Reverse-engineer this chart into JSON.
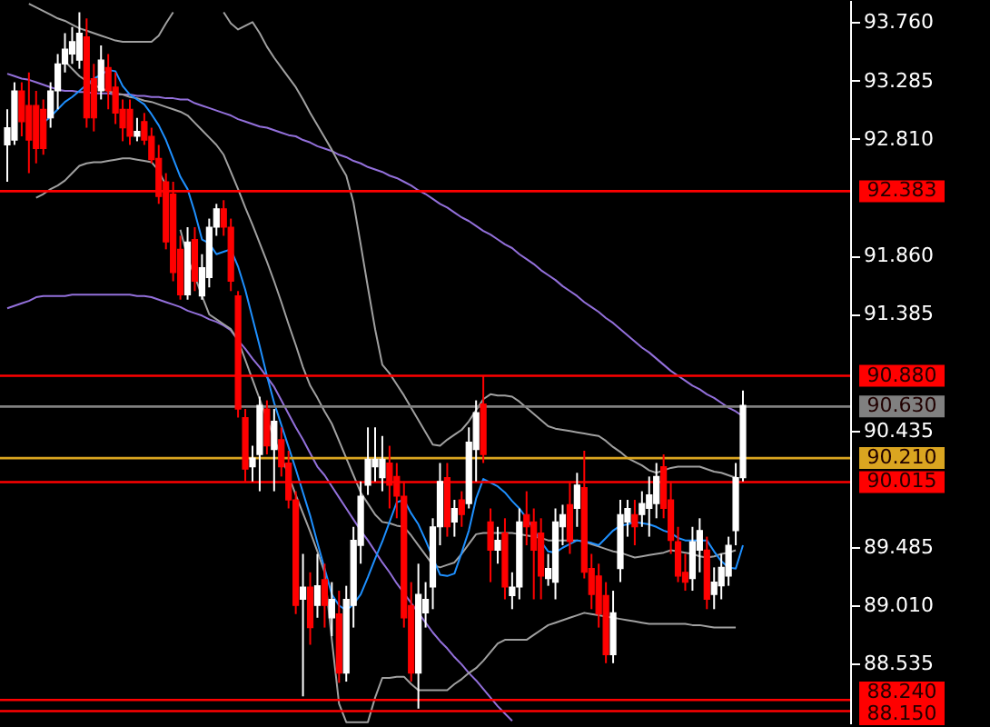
{
  "chart_data": {
    "type": "candlestick",
    "ylim": [
      88.05,
      93.94
    ],
    "categories": [
      null,
      null,
      null,
      null,
      null,
      null,
      null,
      null,
      null,
      null,
      null,
      null,
      null,
      null,
      null,
      null,
      null,
      null,
      null,
      null,
      null,
      null,
      null,
      null,
      null,
      null,
      null,
      null,
      null,
      null,
      null,
      null,
      null,
      null,
      null,
      null,
      null,
      null,
      null,
      null,
      null,
      null,
      null,
      null,
      null,
      null,
      null,
      null,
      null,
      null,
      null,
      null,
      null,
      null,
      null,
      null,
      null,
      null,
      null,
      null,
      null,
      null,
      null,
      null,
      null,
      null,
      null,
      null,
      null,
      null,
      null,
      null,
      null,
      null,
      null,
      null,
      null,
      null,
      null,
      null,
      null,
      null,
      null,
      null,
      null,
      null,
      null,
      null,
      null,
      null,
      null,
      null,
      null,
      null,
      null,
      null,
      null,
      null,
      null,
      null,
      null,
      null,
      null
    ],
    "yticks": [
      {
        "value": 93.76,
        "label": "93.760"
      },
      {
        "value": 93.285,
        "label": "93.285"
      },
      {
        "value": 92.81,
        "label": "92.810"
      },
      {
        "value": 91.86,
        "label": "91.860"
      },
      {
        "value": 91.385,
        "label": "91.385"
      },
      {
        "value": 90.435,
        "label": "90.435"
      },
      {
        "value": 89.485,
        "label": "89.485"
      },
      {
        "value": 89.01,
        "label": "89.010"
      },
      {
        "value": 88.535,
        "label": "88.535"
      }
    ],
    "ref_lines": [
      {
        "axis": "y",
        "value": 92.383,
        "label": "92.383",
        "color": "#ff0000"
      },
      {
        "axis": "y",
        "value": 90.88,
        "label": "90.880",
        "color": "#ff0000"
      },
      {
        "axis": "y",
        "value": 90.63,
        "label": "90.630",
        "color": "#808080"
      },
      {
        "axis": "y",
        "value": 90.21,
        "label": "90.210",
        "color": "#daa520"
      },
      {
        "axis": "y",
        "value": 90.015,
        "label": "90.015",
        "color": "#ff0000"
      },
      {
        "axis": "y",
        "value": 88.24,
        "label": "88.240",
        "color": "#ff0000"
      },
      {
        "axis": "y",
        "value": 88.15,
        "label": "88.150",
        "color": "#ff0000"
      }
    ],
    "ohlc": [
      [
        92.76,
        93.05,
        92.46,
        92.9
      ],
      [
        92.8,
        93.27,
        92.76,
        93.2
      ],
      [
        93.2,
        93.27,
        92.83,
        92.95
      ],
      [
        93.08,
        93.35,
        92.53,
        92.8
      ],
      [
        93.08,
        93.2,
        92.61,
        92.73
      ],
      [
        93.05,
        93.13,
        92.68,
        92.73
      ],
      [
        92.98,
        93.27,
        92.9,
        93.2
      ],
      [
        93.2,
        93.5,
        93.05,
        93.42
      ],
      [
        93.42,
        93.67,
        93.35,
        93.54
      ],
      [
        93.5,
        93.72,
        93.42,
        93.6
      ],
      [
        93.45,
        93.84,
        93.38,
        93.67
      ],
      [
        93.64,
        93.79,
        92.9,
        92.98
      ],
      [
        93.3,
        93.42,
        92.87,
        92.98
      ],
      [
        93.2,
        93.57,
        93.13,
        93.45
      ],
      [
        93.39,
        93.5,
        93.05,
        93.2
      ],
      [
        93.23,
        93.35,
        92.93,
        93.02
      ],
      [
        93.05,
        93.13,
        92.79,
        92.9
      ],
      [
        93.05,
        93.13,
        92.76,
        92.83
      ],
      [
        92.83,
        92.98,
        92.79,
        92.87
      ],
      [
        92.95,
        93.02,
        92.76,
        92.8
      ],
      [
        92.83,
        92.9,
        92.61,
        92.64
      ],
      [
        92.65,
        92.76,
        92.28,
        92.34
      ],
      [
        92.46,
        92.53,
        91.91,
        91.97
      ],
      [
        92.36,
        92.46,
        91.65,
        91.72
      ],
      [
        91.91,
        92.02,
        91.5,
        91.54
      ],
      [
        91.54,
        92.09,
        91.5,
        91.97
      ],
      [
        91.99,
        92.09,
        91.57,
        91.65
      ],
      [
        91.53,
        91.87,
        91.5,
        91.76
      ],
      [
        91.68,
        92.16,
        91.6,
        92.09
      ],
      [
        92.09,
        92.28,
        92.02,
        92.24
      ],
      [
        92.24,
        92.31,
        92.02,
        92.09
      ],
      [
        92.09,
        92.16,
        91.57,
        91.65
      ],
      [
        91.53,
        91.57,
        90.54,
        90.61
      ],
      [
        90.54,
        90.61,
        90.02,
        90.12
      ],
      [
        90.14,
        90.31,
        90.02,
        90.21
      ],
      [
        90.24,
        90.71,
        89.94,
        90.64
      ],
      [
        90.61,
        90.68,
        90.24,
        90.31
      ],
      [
        90.28,
        90.61,
        89.94,
        90.51
      ],
      [
        90.36,
        90.46,
        90.06,
        90.14
      ],
      [
        90.17,
        90.27,
        89.8,
        89.87
      ],
      [
        89.87,
        89.94,
        88.94,
        89.01
      ],
      [
        89.06,
        89.43,
        88.27,
        89.16
      ],
      [
        89.16,
        89.28,
        88.69,
        88.83
      ],
      [
        89.01,
        89.43,
        88.91,
        89.17
      ],
      [
        89.22,
        89.35,
        88.83,
        89.01
      ],
      [
        88.91,
        89.2,
        88.76,
        89.06
      ],
      [
        88.94,
        89.13,
        88.38,
        88.46
      ],
      [
        88.46,
        89.17,
        88.39,
        89.06
      ],
      [
        89.01,
        89.65,
        88.83,
        89.54
      ],
      [
        89.5,
        90.02,
        89.35,
        89.9
      ],
      [
        89.99,
        90.46,
        89.91,
        90.2
      ],
      [
        90.14,
        90.46,
        90.02,
        90.2
      ],
      [
        90.05,
        90.39,
        89.94,
        90.2
      ],
      [
        90.17,
        90.31,
        89.8,
        89.99
      ],
      [
        90.06,
        90.17,
        89.72,
        89.9
      ],
      [
        89.9,
        90.02,
        88.83,
        88.91
      ],
      [
        89.01,
        89.2,
        88.39,
        88.46
      ],
      [
        88.46,
        89.35,
        88.17,
        89.1
      ],
      [
        88.95,
        89.2,
        88.83,
        89.06
      ],
      [
        89.16,
        89.72,
        88.98,
        89.65
      ],
      [
        89.65,
        90.17,
        89.5,
        90.02
      ],
      [
        90.05,
        90.17,
        89.57,
        89.65
      ],
      [
        89.69,
        89.87,
        89.57,
        89.8
      ],
      [
        89.87,
        89.94,
        89.65,
        89.75
      ],
      [
        89.84,
        90.46,
        89.8,
        90.34
      ],
      [
        90.28,
        90.68,
        90.02,
        90.58
      ],
      [
        90.65,
        90.88,
        90.17,
        90.24
      ],
      [
        89.69,
        89.8,
        89.2,
        89.46
      ],
      [
        89.46,
        89.65,
        89.35,
        89.54
      ],
      [
        89.6,
        89.72,
        89.06,
        89.16
      ],
      [
        89.09,
        89.28,
        88.98,
        89.16
      ],
      [
        89.16,
        89.8,
        89.06,
        89.69
      ],
      [
        89.75,
        89.94,
        89.5,
        89.65
      ],
      [
        89.69,
        89.8,
        89.06,
        89.46
      ],
      [
        89.6,
        89.72,
        89.06,
        89.25
      ],
      [
        89.23,
        89.43,
        89.17,
        89.31
      ],
      [
        89.2,
        89.8,
        89.06,
        89.69
      ],
      [
        89.65,
        89.83,
        89.5,
        89.75
      ],
      [
        89.83,
        90.02,
        89.43,
        89.53
      ],
      [
        89.8,
        90.09,
        89.65,
        89.99
      ],
      [
        89.97,
        90.27,
        89.23,
        89.28
      ],
      [
        89.31,
        89.43,
        88.98,
        89.1
      ],
      [
        89.25,
        89.35,
        88.83,
        88.94
      ],
      [
        89.09,
        89.2,
        88.54,
        88.61
      ],
      [
        88.61,
        89.13,
        88.54,
        88.95
      ],
      [
        89.31,
        89.87,
        89.2,
        89.75
      ],
      [
        89.69,
        89.87,
        89.57,
        89.8
      ],
      [
        89.75,
        89.87,
        89.5,
        89.65
      ],
      [
        89.75,
        89.94,
        89.65,
        89.84
      ],
      [
        89.8,
        90.06,
        89.57,
        89.91
      ],
      [
        89.84,
        90.17,
        89.72,
        90.06
      ],
      [
        90.14,
        90.24,
        89.72,
        89.8
      ],
      [
        89.87,
        90.02,
        89.43,
        89.54
      ],
      [
        89.53,
        89.65,
        89.2,
        89.25
      ],
      [
        89.28,
        89.43,
        89.13,
        89.2
      ],
      [
        89.23,
        89.65,
        89.13,
        89.53
      ],
      [
        89.46,
        89.72,
        89.28,
        89.62
      ],
      [
        89.46,
        89.57,
        88.98,
        89.06
      ],
      [
        89.1,
        89.32,
        88.98,
        89.2
      ],
      [
        89.17,
        89.43,
        89.06,
        89.32
      ],
      [
        89.25,
        89.57,
        89.17,
        89.5
      ],
      [
        89.62,
        90.17,
        89.5,
        90.05
      ],
      [
        90.05,
        90.76,
        90.02,
        90.64
      ]
    ],
    "colors": [
      "#ffffff",
      "#ffffff",
      "#ff0000",
      "#ff0000",
      "#ff0000",
      "#ff0000",
      "#ffffff",
      "#ffffff",
      "#ffffff",
      "#ffffff",
      "#ffffff",
      "#ff0000",
      "#ff0000",
      "#ffffff",
      "#ff0000",
      "#ff0000",
      "#ff0000",
      "#ff0000",
      "#ffffff",
      "#ff0000",
      "#ff0000",
      "#ff0000",
      "#ff0000",
      "#ff0000",
      "#ff0000",
      "#ffffff",
      "#ff0000",
      "#ffffff",
      "#ffffff",
      "#ffffff",
      "#ff0000",
      "#ff0000",
      "#ff0000",
      "#ff0000",
      "#ffffff",
      "#ffffff",
      "#ff0000",
      "#ffffff",
      "#ff0000",
      "#ff0000",
      "#ff0000",
      "#ffffff",
      "#ff0000",
      "#ffffff",
      "#ff0000",
      "#ffffff",
      "#ff0000",
      "#ffffff",
      "#ffffff",
      "#ffffff",
      "#ffffff",
      "#ffffff",
      "#ffffff",
      "#ff0000",
      "#ff0000",
      "#ff0000",
      "#ff0000",
      "#ffffff",
      "#ffffff",
      "#ffffff",
      "#ffffff",
      "#ff0000",
      "#ffffff",
      "#ff0000",
      "#ffffff",
      "#ffffff",
      "#ff0000",
      "#ff0000",
      "#ffffff",
      "#ff0000",
      "#ffffff",
      "#ffffff",
      "#ff0000",
      "#ff0000",
      "#ff0000",
      "#ffffff",
      "#ffffff",
      "#ffffff",
      "#ff0000",
      "#ffffff",
      "#ff0000",
      "#ff0000",
      "#ff0000",
      "#ff0000",
      "#ffffff",
      "#ffffff",
      "#ffffff",
      "#ff0000",
      "#ffffff",
      "#ffffff",
      "#ffffff",
      "#ff0000",
      "#ff0000",
      "#ff0000",
      "#ff0000",
      "#ffffff",
      "#ffffff",
      "#ff0000",
      "#ffffff",
      "#ffffff",
      "#ffffff",
      "#ffffff",
      "#ffffff"
    ],
    "series": [
      {
        "type": "line",
        "color": "#9370db",
        "values": [
          93.34,
          93.32,
          93.3,
          93.29,
          93.27,
          93.25,
          93.23,
          93.21,
          93.2,
          93.2,
          93.19,
          93.19,
          93.18,
          93.18,
          93.18,
          93.17,
          93.17,
          93.17,
          93.16,
          93.16,
          93.15,
          93.15,
          93.14,
          93.14,
          93.13,
          93.13,
          93.1,
          93.08,
          93.06,
          93.04,
          93.02,
          93.0,
          92.97,
          92.95,
          92.93,
          92.91,
          92.9,
          92.88,
          92.86,
          92.84,
          92.83,
          92.8,
          92.78,
          92.75,
          92.73,
          92.71,
          92.68,
          92.66,
          92.63,
          92.61,
          92.58,
          92.56,
          92.54,
          92.51,
          92.49,
          92.46,
          92.43,
          92.39,
          92.36,
          92.32,
          92.28,
          92.25,
          92.21,
          92.17,
          92.14,
          92.1,
          92.06,
          92.03,
          91.99,
          91.95,
          91.92,
          91.87,
          91.83,
          91.79,
          91.74,
          91.7,
          91.66,
          91.61,
          91.57,
          91.53,
          91.48,
          91.44,
          91.4,
          91.35,
          91.31,
          91.26,
          91.21,
          91.16,
          91.11,
          91.07,
          91.02,
          90.97,
          90.92,
          90.88,
          90.84,
          90.8,
          90.77,
          90.73,
          90.7,
          90.66,
          90.62,
          90.59,
          90.55
        ]
      },
      {
        "type": "line",
        "color": "#9370db",
        "values": [
          91.43,
          91.45,
          91.47,
          91.49,
          91.52,
          91.53,
          91.53,
          91.53,
          91.53,
          91.54,
          91.54,
          91.54,
          91.54,
          91.54,
          91.54,
          91.54,
          91.54,
          91.54,
          91.53,
          91.53,
          91.52,
          91.5,
          91.48,
          91.46,
          91.44,
          91.41,
          91.39,
          91.37,
          91.34,
          91.32,
          91.29,
          91.25,
          91.17,
          91.1,
          91.02,
          90.95,
          90.87,
          90.79,
          90.68,
          90.57,
          90.46,
          90.36,
          90.25,
          90.14,
          90.07,
          89.98,
          89.89,
          89.8,
          89.71,
          89.62,
          89.54,
          89.45,
          89.36,
          89.28,
          89.19,
          89.11,
          89.03,
          88.95,
          88.87,
          88.79,
          88.72,
          88.66,
          88.59,
          88.53,
          88.46,
          88.4,
          88.33,
          88.26,
          88.19,
          88.13,
          88.07,
          null,
          null,
          null,
          null,
          null,
          null,
          null,
          null,
          null,
          null,
          null,
          null,
          null,
          null,
          null,
          null,
          null,
          null,
          null,
          null,
          null,
          null,
          null,
          null,
          null,
          null,
          null,
          null,
          null,
          null,
          null,
          null
        ]
      },
      {
        "type": "line",
        "color": "#a0a0a0",
        "values": [
          null,
          null,
          null,
          93.91,
          93.88,
          93.85,
          93.82,
          93.79,
          93.77,
          93.74,
          93.71,
          93.69,
          93.67,
          93.65,
          93.63,
          93.61,
          93.6,
          93.6,
          93.6,
          93.6,
          93.6,
          93.65,
          93.75,
          93.84,
          null,
          null,
          null,
          null,
          null,
          null,
          null,
          null,
          null,
          null,
          null,
          null,
          null,
          null,
          null,
          null,
          null,
          null,
          null,
          null,
          null,
          null,
          null,
          null,
          null,
          null,
          null,
          null,
          null,
          null,
          null,
          null,
          null,
          null,
          null,
          null,
          null,
          null,
          null,
          null,
          null,
          null,
          null,
          null,
          null,
          null,
          null,
          null,
          null,
          null,
          null,
          null,
          null,
          null,
          null,
          null,
          null,
          null,
          null,
          null,
          null,
          null,
          null,
          null,
          null,
          null,
          null,
          null,
          null,
          null,
          null,
          null,
          null,
          null,
          null,
          null,
          null,
          null,
          null
        ]
      },
      {
        "type": "line",
        "color": "#a0a0a0",
        "values": [
          null,
          null,
          null,
          null,
          null,
          null,
          null,
          null,
          null,
          null,
          null,
          null,
          null,
          null,
          null,
          null,
          null,
          null,
          null,
          null,
          null,
          null,
          null,
          null,
          null,
          null,
          null,
          null,
          null,
          null,
          93.84,
          93.75,
          93.7,
          93.73,
          93.76,
          93.67,
          93.56,
          93.47,
          93.39,
          93.31,
          93.23,
          93.13,
          93.02,
          92.92,
          92.82,
          92.72,
          92.61,
          92.51,
          92.29,
          91.95,
          91.6,
          91.26,
          90.97,
          90.9,
          90.81,
          90.72,
          90.62,
          90.52,
          90.42,
          90.32,
          90.31,
          90.36,
          90.4,
          90.44,
          90.51,
          90.6,
          90.69,
          90.73,
          90.72,
          90.72,
          90.71,
          90.67,
          90.62,
          90.57,
          90.52,
          90.47,
          90.45,
          90.44,
          90.43,
          90.42,
          90.41,
          90.4,
          90.39,
          90.35,
          90.3,
          90.26,
          90.21,
          90.18,
          90.15,
          90.11,
          90.09,
          90.11,
          90.13,
          90.14,
          90.14,
          90.14,
          90.14,
          90.12,
          90.1,
          90.09,
          90.07,
          90.05,
          null
        ]
      },
      {
        "type": "line",
        "color": "#a0a0a0",
        "values": [
          null,
          null,
          null,
          null,
          null,
          null,
          null,
          null,
          93.44,
          93.38,
          93.32,
          93.28,
          93.25,
          93.22,
          93.2,
          93.18,
          93.17,
          93.15,
          93.14,
          93.12,
          93.11,
          93.09,
          93.07,
          93.05,
          93.03,
          93.0,
          92.94,
          92.88,
          92.82,
          92.76,
          92.68,
          92.54,
          92.4,
          92.25,
          92.11,
          91.96,
          91.81,
          91.65,
          91.48,
          91.3,
          91.13,
          90.95,
          90.8,
          90.7,
          90.59,
          90.49,
          90.35,
          90.21,
          90.07,
          89.93,
          89.84,
          89.75,
          89.69,
          89.68,
          89.66,
          89.65,
          89.58,
          89.5,
          89.42,
          89.34,
          89.32,
          89.34,
          89.36,
          89.43,
          89.51,
          89.59,
          89.6,
          89.6,
          89.6,
          89.6,
          89.6,
          89.59,
          89.58,
          89.57,
          89.56,
          89.54,
          89.54,
          89.54,
          89.54,
          89.54,
          89.53,
          89.51,
          89.49,
          89.47,
          89.45,
          89.44,
          89.42,
          89.4,
          89.41,
          89.42,
          89.43,
          89.44,
          89.46,
          89.45,
          89.44,
          89.43,
          89.41,
          89.4,
          89.41,
          89.43,
          89.44,
          89.46,
          null
        ]
      },
      {
        "type": "line",
        "color": "#a0a0a0",
        "values": [
          null,
          null,
          null,
          null,
          92.33,
          92.36,
          92.4,
          92.43,
          92.47,
          92.53,
          92.59,
          92.61,
          92.62,
          92.62,
          92.63,
          92.64,
          92.65,
          92.65,
          92.64,
          92.63,
          92.62,
          92.55,
          92.43,
          null,
          92.07,
          91.84,
          91.69,
          91.53,
          91.38,
          91.34,
          91.3,
          91.26,
          91.17,
          91.01,
          90.85,
          90.69,
          90.53,
          90.37,
          90.22,
          90.07,
          89.91,
          89.76,
          89.61,
          89.45,
          89.28,
          88.73,
          88.21,
          88.06,
          88.06,
          88.06,
          88.06,
          88.26,
          88.42,
          88.42,
          88.43,
          88.43,
          88.37,
          88.32,
          88.32,
          88.32,
          88.32,
          88.32,
          88.37,
          88.41,
          88.46,
          88.5,
          88.56,
          88.63,
          88.7,
          88.73,
          88.73,
          88.73,
          88.73,
          88.77,
          88.81,
          88.85,
          88.87,
          88.89,
          88.91,
          88.93,
          88.95,
          88.94,
          88.93,
          88.92,
          88.91,
          88.9,
          88.89,
          88.88,
          88.87,
          88.86,
          88.86,
          88.86,
          88.86,
          88.86,
          88.86,
          88.85,
          88.85,
          88.84,
          88.83,
          88.83,
          88.83,
          88.83,
          null
        ]
      },
      {
        "type": "line",
        "color": "#1e90ff",
        "values": [
          null,
          null,
          null,
          null,
          null,
          92.94,
          92.99,
          93.05,
          93.11,
          93.15,
          93.2,
          93.25,
          93.3,
          93.33,
          93.37,
          93.36,
          93.24,
          93.17,
          93.13,
          93.09,
          93.01,
          92.92,
          92.8,
          92.65,
          92.5,
          92.4,
          92.21,
          91.99,
          91.96,
          91.87,
          91.89,
          91.91,
          91.77,
          91.58,
          91.35,
          91.12,
          90.88,
          90.66,
          90.48,
          90.3,
          90.12,
          89.93,
          89.74,
          89.52,
          89.31,
          89.1,
          89.01,
          88.97,
          89.02,
          89.1,
          89.24,
          89.39,
          89.53,
          89.69,
          89.85,
          89.87,
          89.76,
          89.67,
          89.54,
          89.4,
          89.26,
          89.25,
          89.27,
          89.44,
          89.62,
          89.88,
          90.04,
          90.01,
          89.98,
          89.93,
          89.86,
          89.8,
          89.72,
          89.63,
          89.53,
          89.45,
          89.44,
          89.48,
          89.51,
          89.54,
          89.53,
          89.52,
          89.5,
          89.56,
          89.62,
          89.66,
          89.67,
          89.69,
          89.68,
          89.67,
          89.65,
          89.62,
          89.6,
          89.56,
          89.54,
          89.54,
          89.54,
          89.54,
          89.45,
          89.37,
          89.32,
          89.31,
          89.5
        ]
      }
    ]
  }
}
